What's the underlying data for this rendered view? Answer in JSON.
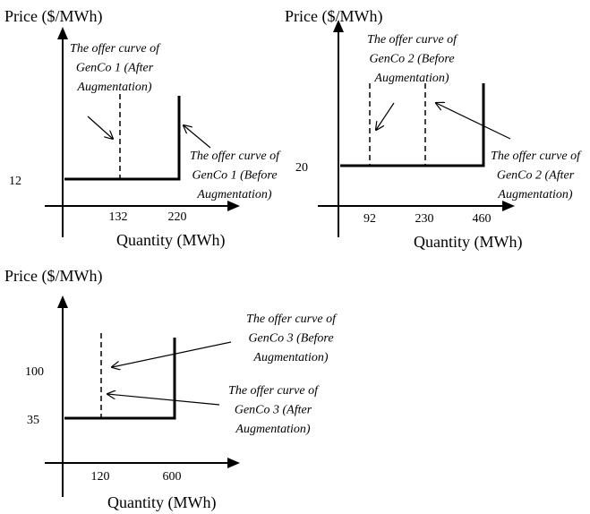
{
  "panels": [
    {
      "y_label": "Price ($/MWh)",
      "x_label": "Quantity (MWh)",
      "y_ticks": [
        "12"
      ],
      "x_ticks": [
        "132",
        "220"
      ],
      "annotations": [
        {
          "lines": [
            "The offer curve of",
            "GenCo 1 (After",
            "Augmentation)"
          ]
        },
        {
          "lines": [
            "The offer curve of",
            "GenCo 1 (Before",
            "Augmentation)"
          ]
        }
      ]
    },
    {
      "y_label": "Price ($/MWh)",
      "x_label": "Quantity (MWh)",
      "y_ticks": [
        "20"
      ],
      "x_ticks": [
        "92",
        "230",
        "460"
      ],
      "annotations": [
        {
          "lines": [
            "The offer curve of",
            "GenCo 2 (Before",
            "Augmentation)"
          ]
        },
        {
          "lines": [
            "The offer curve of",
            "GenCo 2 (After",
            "Augmentation)"
          ]
        }
      ]
    },
    {
      "y_label": "Price ($/MWh)",
      "x_label": "Quantity (MWh)",
      "y_ticks": [
        "100",
        "35"
      ],
      "x_ticks": [
        "120",
        "600"
      ],
      "annotations": [
        {
          "lines": [
            "The offer curve of",
            "GenCo 3 (Before",
            "Augmentation)"
          ]
        },
        {
          "lines": [
            "The offer curve of",
            "GenCo 3 (After",
            "Augmentation)"
          ]
        }
      ]
    }
  ]
}
